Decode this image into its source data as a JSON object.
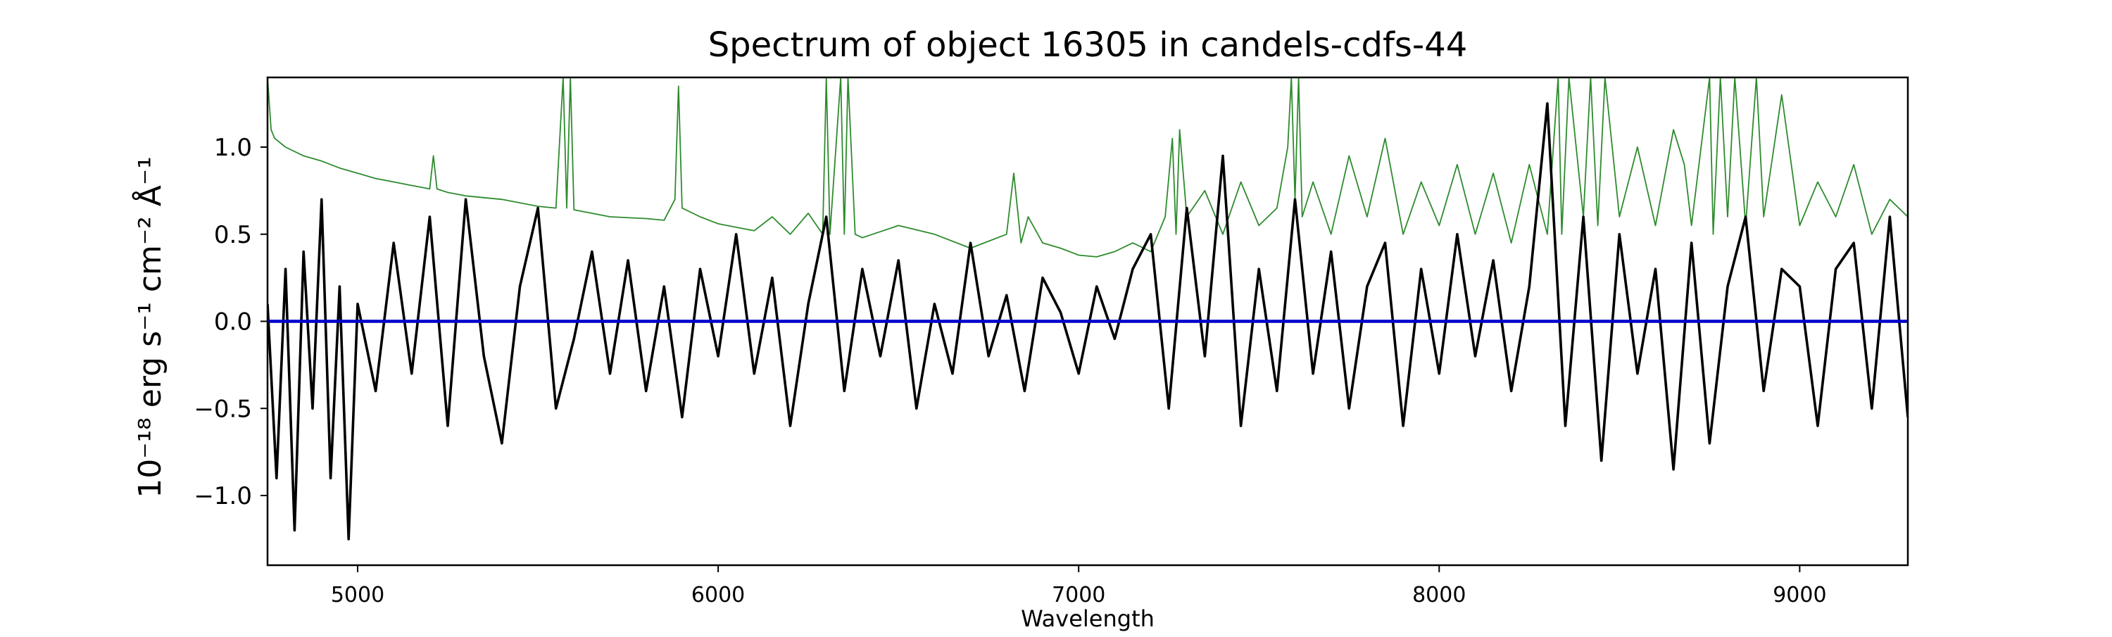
{
  "chart_data": {
    "type": "line",
    "title": "Spectrum of object 16305 in candels-cdfs-44",
    "xlabel": "Wavelength",
    "ylabel": "10⁻¹⁸ erg s⁻¹ cm⁻² Å⁻¹",
    "xlim": [
      4750,
      9300
    ],
    "ylim": [
      -1.4,
      1.4
    ],
    "x_ticks": [
      5000,
      6000,
      7000,
      8000,
      9000
    ],
    "x_tick_labels": [
      "5000",
      "6000",
      "7000",
      "8000",
      "9000"
    ],
    "y_ticks": [
      -1.0,
      -0.5,
      0.0,
      0.5,
      1.0
    ],
    "y_tick_labels": [
      "−1.0",
      "−0.5",
      "0.0",
      "0.5",
      "1.0"
    ],
    "grid": false,
    "colors": {
      "flux": "#000000",
      "error": "#2e8b2e",
      "zero": "#0000cc"
    },
    "series": [
      {
        "key": "flux",
        "x": [
          4750,
          4775,
          4800,
          4825,
          4850,
          4875,
          4900,
          4925,
          4950,
          4975,
          5000,
          5050,
          5100,
          5150,
          5200,
          5250,
          5300,
          5350,
          5400,
          5450,
          5500,
          5550,
          5600,
          5650,
          5700,
          5750,
          5800,
          5850,
          5900,
          5950,
          6000,
          6050,
          6100,
          6150,
          6200,
          6250,
          6300,
          6350,
          6400,
          6450,
          6500,
          6550,
          6600,
          6650,
          6700,
          6750,
          6800,
          6850,
          6900,
          6950,
          7000,
          7050,
          7100,
          7150,
          7200,
          7250,
          7300,
          7350,
          7400,
          7450,
          7500,
          7550,
          7600,
          7650,
          7700,
          7750,
          7800,
          7850,
          7900,
          7950,
          8000,
          8050,
          8100,
          8150,
          8200,
          8250,
          8300,
          8350,
          8400,
          8450,
          8500,
          8550,
          8600,
          8650,
          8700,
          8750,
          8800,
          8850,
          8900,
          8950,
          9000,
          9050,
          9100,
          9150,
          9200,
          9250,
          9300
        ],
        "y": [
          0.1,
          -0.9,
          0.3,
          -1.2,
          0.4,
          -0.5,
          0.7,
          -0.9,
          0.2,
          -1.25,
          0.1,
          -0.4,
          0.45,
          -0.3,
          0.6,
          -0.6,
          0.7,
          -0.2,
          -0.7,
          0.2,
          0.65,
          -0.5,
          -0.1,
          0.4,
          -0.3,
          0.35,
          -0.4,
          0.2,
          -0.55,
          0.3,
          -0.2,
          0.5,
          -0.3,
          0.25,
          -0.6,
          0.1,
          0.6,
          -0.4,
          0.3,
          -0.2,
          0.35,
          -0.5,
          0.1,
          -0.3,
          0.45,
          -0.2,
          0.15,
          -0.4,
          0.25,
          0.05,
          -0.3,
          0.2,
          -0.1,
          0.3,
          0.5,
          -0.5,
          0.65,
          -0.2,
          0.95,
          -0.6,
          0.3,
          -0.4,
          0.7,
          -0.3,
          0.4,
          -0.5,
          0.2,
          0.45,
          -0.6,
          0.3,
          -0.3,
          0.5,
          -0.2,
          0.35,
          -0.4,
          0.2,
          1.25,
          -0.6,
          0.6,
          -0.8,
          0.5,
          -0.3,
          0.3,
          -0.85,
          0.45,
          -0.7,
          0.2,
          0.6,
          -0.4,
          0.3,
          0.2,
          -0.6,
          0.3,
          0.45,
          -0.5,
          0.6,
          -0.55
        ]
      },
      {
        "key": "error",
        "x": [
          4750,
          4760,
          4770,
          4800,
          4850,
          4900,
          4950,
          5000,
          5050,
          5100,
          5150,
          5200,
          5210,
          5220,
          5250,
          5300,
          5400,
          5500,
          5550,
          5570,
          5580,
          5590,
          5600,
          5650,
          5700,
          5800,
          5850,
          5880,
          5890,
          5900,
          5950,
          6000,
          6050,
          6100,
          6150,
          6200,
          6250,
          6290,
          6300,
          6310,
          6340,
          6350,
          6360,
          6380,
          6400,
          6500,
          6600,
          6700,
          6800,
          6820,
          6840,
          6860,
          6900,
          6950,
          7000,
          7050,
          7100,
          7150,
          7200,
          7240,
          7260,
          7270,
          7280,
          7300,
          7350,
          7400,
          7450,
          7500,
          7550,
          7580,
          7590,
          7600,
          7610,
          7620,
          7650,
          7700,
          7750,
          7800,
          7850,
          7900,
          7950,
          8000,
          8050,
          8100,
          8150,
          8200,
          8250,
          8300,
          8330,
          8340,
          8360,
          8400,
          8420,
          8440,
          8460,
          8500,
          8550,
          8600,
          8650,
          8680,
          8700,
          8750,
          8760,
          8780,
          8800,
          8820,
          8850,
          8880,
          8900,
          8950,
          9000,
          9050,
          9100,
          9150,
          9200,
          9250,
          9300
        ],
        "y": [
          1.4,
          1.1,
          1.05,
          1.0,
          0.95,
          0.92,
          0.88,
          0.85,
          0.82,
          0.8,
          0.78,
          0.76,
          0.95,
          0.76,
          0.74,
          0.72,
          0.7,
          0.66,
          0.65,
          1.4,
          0.65,
          1.4,
          0.64,
          0.62,
          0.6,
          0.59,
          0.58,
          0.7,
          1.35,
          0.65,
          0.6,
          0.56,
          0.54,
          0.52,
          0.6,
          0.5,
          0.62,
          0.5,
          1.4,
          0.5,
          1.4,
          0.5,
          1.4,
          0.5,
          0.48,
          0.55,
          0.5,
          0.42,
          0.5,
          0.85,
          0.45,
          0.6,
          0.45,
          0.42,
          0.38,
          0.37,
          0.4,
          0.45,
          0.4,
          0.6,
          1.05,
          0.5,
          1.1,
          0.6,
          0.75,
          0.5,
          0.8,
          0.55,
          0.65,
          1.0,
          1.4,
          0.7,
          1.4,
          0.6,
          0.8,
          0.5,
          0.95,
          0.6,
          1.05,
          0.5,
          0.8,
          0.55,
          0.9,
          0.5,
          0.85,
          0.45,
          0.9,
          0.5,
          1.4,
          0.5,
          1.4,
          0.6,
          1.4,
          0.55,
          1.4,
          0.6,
          1.0,
          0.55,
          1.1,
          0.9,
          0.55,
          1.4,
          0.5,
          1.4,
          0.6,
          1.4,
          0.55,
          1.4,
          0.6,
          1.3,
          0.55,
          0.8,
          0.6,
          0.9,
          0.5,
          0.7,
          0.6
        ]
      },
      {
        "key": "zero",
        "x": [
          4750,
          9300
        ],
        "y": [
          0,
          0
        ]
      }
    ]
  }
}
